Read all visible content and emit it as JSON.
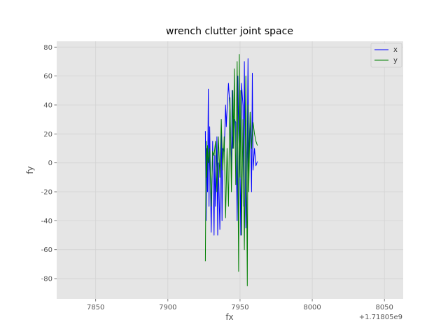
{
  "chart_data": {
    "type": "line",
    "title": "wrench clutter joint space",
    "xlabel": "fx",
    "ylabel": "fy",
    "x_offset_label": "+1.71805e9",
    "xlim": [
      7823,
      8063
    ],
    "ylim": [
      -94,
      84
    ],
    "x_ticks": [
      7850,
      7900,
      7950,
      8000,
      8050
    ],
    "x_tick_labels": [
      "7850",
      "7900",
      "7950",
      "8000",
      "8050"
    ],
    "y_ticks": [
      -80,
      -60,
      -40,
      -20,
      0,
      20,
      40,
      60,
      80
    ],
    "y_tick_labels": [
      "-80",
      "-60",
      "-40",
      "-20",
      "0",
      "20",
      "40",
      "60",
      "80"
    ],
    "grid": true,
    "legend_position": "top-right",
    "colors": {
      "background": "#e5e5e5",
      "grid": "#d3d3d3",
      "x": "#0000ff",
      "y": "#008000"
    },
    "series": [
      {
        "name": "x",
        "color": "#0000ff",
        "x": [
          7926,
          7926.5,
          7927,
          7927.5,
          7928,
          7928.5,
          7929,
          7930,
          7931,
          7932,
          7932.5,
          7933,
          7934,
          7934.5,
          7935,
          7936,
          7937,
          7937.5,
          7938,
          7939,
          7940,
          7940.5,
          7941,
          7942,
          7943,
          7944,
          7944.5,
          7945,
          7946,
          7947,
          7948,
          7948.5,
          7949,
          7950,
          7950.5,
          7951,
          7952,
          7952.5,
          7953,
          7954,
          7955,
          7955.5,
          7956,
          7957,
          7958,
          7958.5,
          7959,
          7960,
          7961,
          7962
        ],
        "y": [
          22,
          -40,
          10,
          -20,
          51,
          -30,
          25,
          -48,
          15,
          -50,
          5,
          -30,
          18,
          -50,
          0,
          -46,
          30,
          -40,
          10,
          8,
          40,
          25,
          37,
          55,
          38,
          -10,
          50,
          10,
          30,
          28,
          -40,
          60,
          22,
          -10,
          -50,
          55,
          40,
          -30,
          70,
          -45,
          15,
          72,
          0,
          35,
          -20,
          62,
          -5,
          10,
          -2,
          1
        ]
      },
      {
        "name": "y",
        "color": "#008000",
        "x": [
          7926,
          7926.5,
          7927,
          7927.5,
          7928,
          7929,
          7930,
          7931,
          7932,
          7933,
          7934,
          7935,
          7936,
          7937,
          7938,
          7939,
          7940,
          7941,
          7942,
          7943,
          7944,
          7945,
          7945.5,
          7946,
          7947,
          7948,
          7949,
          7949.5,
          7950,
          7950.5,
          7951,
          7952,
          7953,
          7954,
          7955,
          7955.5,
          7956,
          7957,
          7958,
          7959,
          7960,
          7961,
          7962
        ],
        "y": [
          -68,
          15,
          -10,
          12,
          0,
          10,
          -30,
          8,
          5,
          15,
          -20,
          18,
          -10,
          30,
          -5,
          18,
          -38,
          10,
          -30,
          45,
          -20,
          50,
          10,
          65,
          -15,
          70,
          -75,
          75,
          -10,
          50,
          -50,
          30,
          -60,
          60,
          -85,
          40,
          -20,
          35,
          10,
          28,
          20,
          15,
          12
        ]
      }
    ]
  }
}
